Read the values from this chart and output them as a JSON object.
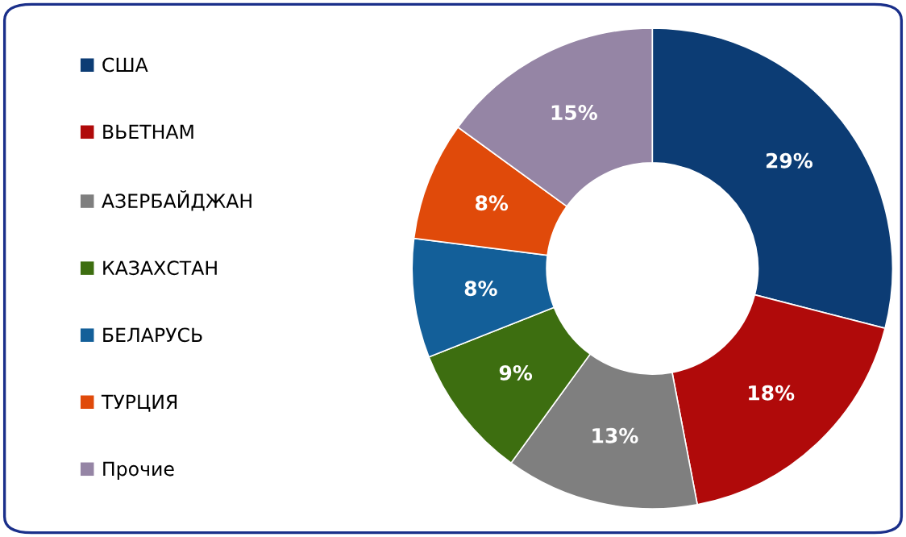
{
  "chart_data": {
    "type": "donut",
    "categories": [
      "США",
      "ВЬЕТНАМ",
      "АЗЕРБАЙДЖАН",
      "КАЗАХСТАН",
      "БЕЛАРУСЬ",
      "ТУРЦИЯ",
      "Прочие"
    ],
    "values": [
      29,
      18,
      13,
      9,
      8,
      8,
      15
    ],
    "colors": [
      "#0c3c74",
      "#b00a0a",
      "#7f7f7f",
      "#3d6e10",
      "#135f99",
      "#e04a0a",
      "#9585a5"
    ],
    "value_labels": [
      "29%",
      "18%",
      "13%",
      "9%",
      "8%",
      "8%",
      "15%"
    ],
    "legend": "left"
  }
}
